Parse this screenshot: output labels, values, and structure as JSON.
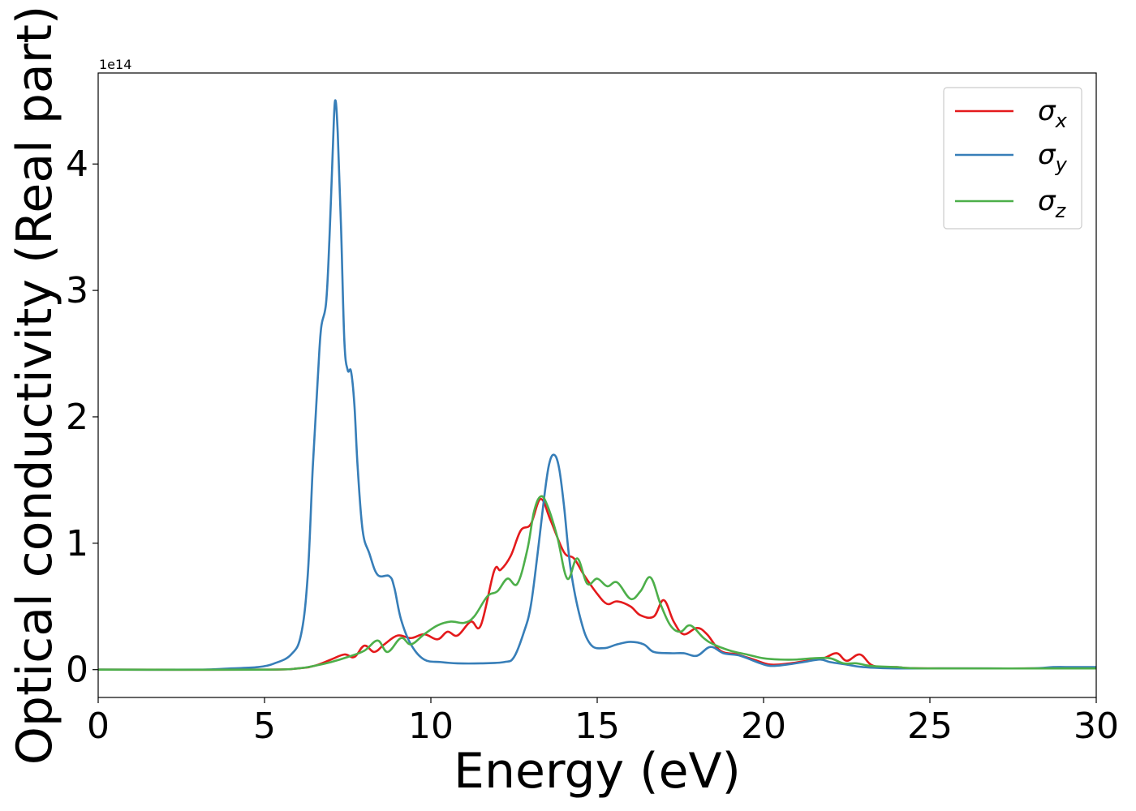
{
  "chart_data": {
    "type": "line",
    "xlabel": "Energy (eV)",
    "ylabel": "Optical conductivity (Real part)",
    "offset_text": "1e14",
    "xlim": [
      0,
      30
    ],
    "ylim": [
      -0.22,
      4.72
    ],
    "xticks": [
      0,
      5,
      10,
      15,
      20,
      25,
      30
    ],
    "yticks": [
      0,
      1,
      2,
      3,
      4
    ],
    "grid": false,
    "legend_position": "top-right",
    "y_units": "1e14",
    "series": [
      {
        "name": "σx",
        "base": "σ",
        "sub": "x",
        "color": "#e41a1c",
        "points": [
          [
            0,
            0
          ],
          [
            5,
            0
          ],
          [
            6,
            0.01
          ],
          [
            6.5,
            0.03
          ],
          [
            7,
            0.08
          ],
          [
            7.4,
            0.12
          ],
          [
            7.7,
            0.1
          ],
          [
            8,
            0.19
          ],
          [
            8.3,
            0.14
          ],
          [
            8.6,
            0.2
          ],
          [
            9,
            0.27
          ],
          [
            9.4,
            0.25
          ],
          [
            9.8,
            0.28
          ],
          [
            10.2,
            0.24
          ],
          [
            10.5,
            0.3
          ],
          [
            10.8,
            0.27
          ],
          [
            11.2,
            0.38
          ],
          [
            11.5,
            0.35
          ],
          [
            11.9,
            0.78
          ],
          [
            12.1,
            0.79
          ],
          [
            12.4,
            0.9
          ],
          [
            12.7,
            1.1
          ],
          [
            13,
            1.15
          ],
          [
            13.3,
            1.35
          ],
          [
            13.6,
            1.18
          ],
          [
            14,
            0.93
          ],
          [
            14.3,
            0.88
          ],
          [
            14.6,
            0.75
          ],
          [
            15,
            0.6
          ],
          [
            15.3,
            0.52
          ],
          [
            15.6,
            0.54
          ],
          [
            16,
            0.5
          ],
          [
            16.3,
            0.43
          ],
          [
            16.7,
            0.42
          ],
          [
            17,
            0.55
          ],
          [
            17.3,
            0.38
          ],
          [
            17.6,
            0.28
          ],
          [
            18,
            0.33
          ],
          [
            18.3,
            0.28
          ],
          [
            18.7,
            0.15
          ],
          [
            19.2,
            0.12
          ],
          [
            19.7,
            0.08
          ],
          [
            20.2,
            0.04
          ],
          [
            20.8,
            0.05
          ],
          [
            21.3,
            0.07
          ],
          [
            21.8,
            0.09
          ],
          [
            22.2,
            0.13
          ],
          [
            22.5,
            0.07
          ],
          [
            22.9,
            0.12
          ],
          [
            23.3,
            0.03
          ],
          [
            24,
            0.02
          ],
          [
            25,
            0.01
          ],
          [
            30,
            0.01
          ]
        ]
      },
      {
        "name": "σy",
        "base": "σ",
        "sub": "y",
        "color": "#377eb8",
        "points": [
          [
            0,
            0
          ],
          [
            3,
            0
          ],
          [
            4,
            0.01
          ],
          [
            4.8,
            0.02
          ],
          [
            5.3,
            0.05
          ],
          [
            5.8,
            0.12
          ],
          [
            6.1,
            0.28
          ],
          [
            6.3,
            0.75
          ],
          [
            6.45,
            1.6
          ],
          [
            6.6,
            2.3
          ],
          [
            6.7,
            2.7
          ],
          [
            6.85,
            2.9
          ],
          [
            6.95,
            3.4
          ],
          [
            7.05,
            4.1
          ],
          [
            7.12,
            4.5
          ],
          [
            7.2,
            4.25
          ],
          [
            7.3,
            3.5
          ],
          [
            7.4,
            2.6
          ],
          [
            7.5,
            2.37
          ],
          [
            7.6,
            2.36
          ],
          [
            7.7,
            2.1
          ],
          [
            7.8,
            1.6
          ],
          [
            7.95,
            1.1
          ],
          [
            8.15,
            0.92
          ],
          [
            8.4,
            0.75
          ],
          [
            8.75,
            0.74
          ],
          [
            8.9,
            0.65
          ],
          [
            9.1,
            0.4
          ],
          [
            9.4,
            0.2
          ],
          [
            9.8,
            0.08
          ],
          [
            10.3,
            0.06
          ],
          [
            10.8,
            0.05
          ],
          [
            11.5,
            0.05
          ],
          [
            12.2,
            0.06
          ],
          [
            12.5,
            0.1
          ],
          [
            12.8,
            0.3
          ],
          [
            13,
            0.5
          ],
          [
            13.2,
            0.9
          ],
          [
            13.4,
            1.35
          ],
          [
            13.55,
            1.62
          ],
          [
            13.7,
            1.7
          ],
          [
            13.85,
            1.6
          ],
          [
            14,
            1.3
          ],
          [
            14.2,
            0.8
          ],
          [
            14.5,
            0.4
          ],
          [
            14.8,
            0.2
          ],
          [
            15.2,
            0.17
          ],
          [
            15.6,
            0.2
          ],
          [
            16,
            0.22
          ],
          [
            16.4,
            0.2
          ],
          [
            16.7,
            0.14
          ],
          [
            17.2,
            0.13
          ],
          [
            17.6,
            0.13
          ],
          [
            18,
            0.11
          ],
          [
            18.4,
            0.18
          ],
          [
            18.8,
            0.13
          ],
          [
            19.3,
            0.11
          ],
          [
            19.8,
            0.06
          ],
          [
            20.2,
            0.03
          ],
          [
            20.7,
            0.04
          ],
          [
            21.2,
            0.06
          ],
          [
            21.7,
            0.08
          ],
          [
            22,
            0.06
          ],
          [
            22.5,
            0.04
          ],
          [
            23,
            0.02
          ],
          [
            24,
            0.01
          ],
          [
            26,
            0.01
          ],
          [
            28,
            0.01
          ],
          [
            28.7,
            0.02
          ],
          [
            29.3,
            0.02
          ],
          [
            30,
            0.02
          ]
        ]
      },
      {
        "name": "σz",
        "base": "σ",
        "sub": "z",
        "color": "#4daf4a",
        "points": [
          [
            0,
            0
          ],
          [
            5,
            0
          ],
          [
            6,
            0.01
          ],
          [
            6.5,
            0.03
          ],
          [
            7,
            0.06
          ],
          [
            7.5,
            0.1
          ],
          [
            8,
            0.15
          ],
          [
            8.4,
            0.23
          ],
          [
            8.7,
            0.14
          ],
          [
            9.1,
            0.25
          ],
          [
            9.4,
            0.2
          ],
          [
            9.8,
            0.28
          ],
          [
            10.2,
            0.35
          ],
          [
            10.6,
            0.38
          ],
          [
            11,
            0.37
          ],
          [
            11.3,
            0.42
          ],
          [
            11.7,
            0.58
          ],
          [
            12,
            0.62
          ],
          [
            12.3,
            0.72
          ],
          [
            12.6,
            0.68
          ],
          [
            12.9,
            0.95
          ],
          [
            13.1,
            1.25
          ],
          [
            13.3,
            1.37
          ],
          [
            13.5,
            1.3
          ],
          [
            13.8,
            1.05
          ],
          [
            14.1,
            0.72
          ],
          [
            14.4,
            0.88
          ],
          [
            14.7,
            0.68
          ],
          [
            15,
            0.72
          ],
          [
            15.3,
            0.66
          ],
          [
            15.6,
            0.69
          ],
          [
            16,
            0.56
          ],
          [
            16.3,
            0.62
          ],
          [
            16.6,
            0.73
          ],
          [
            16.9,
            0.52
          ],
          [
            17.2,
            0.35
          ],
          [
            17.5,
            0.3
          ],
          [
            17.8,
            0.35
          ],
          [
            18.2,
            0.25
          ],
          [
            18.5,
            0.2
          ],
          [
            19,
            0.15
          ],
          [
            19.5,
            0.12
          ],
          [
            20,
            0.09
          ],
          [
            20.5,
            0.08
          ],
          [
            21,
            0.08
          ],
          [
            21.5,
            0.09
          ],
          [
            22,
            0.09
          ],
          [
            22.4,
            0.05
          ],
          [
            22.8,
            0.05
          ],
          [
            23.2,
            0.03
          ],
          [
            24,
            0.02
          ],
          [
            25,
            0.01
          ],
          [
            30,
            0.01
          ]
        ]
      }
    ]
  }
}
